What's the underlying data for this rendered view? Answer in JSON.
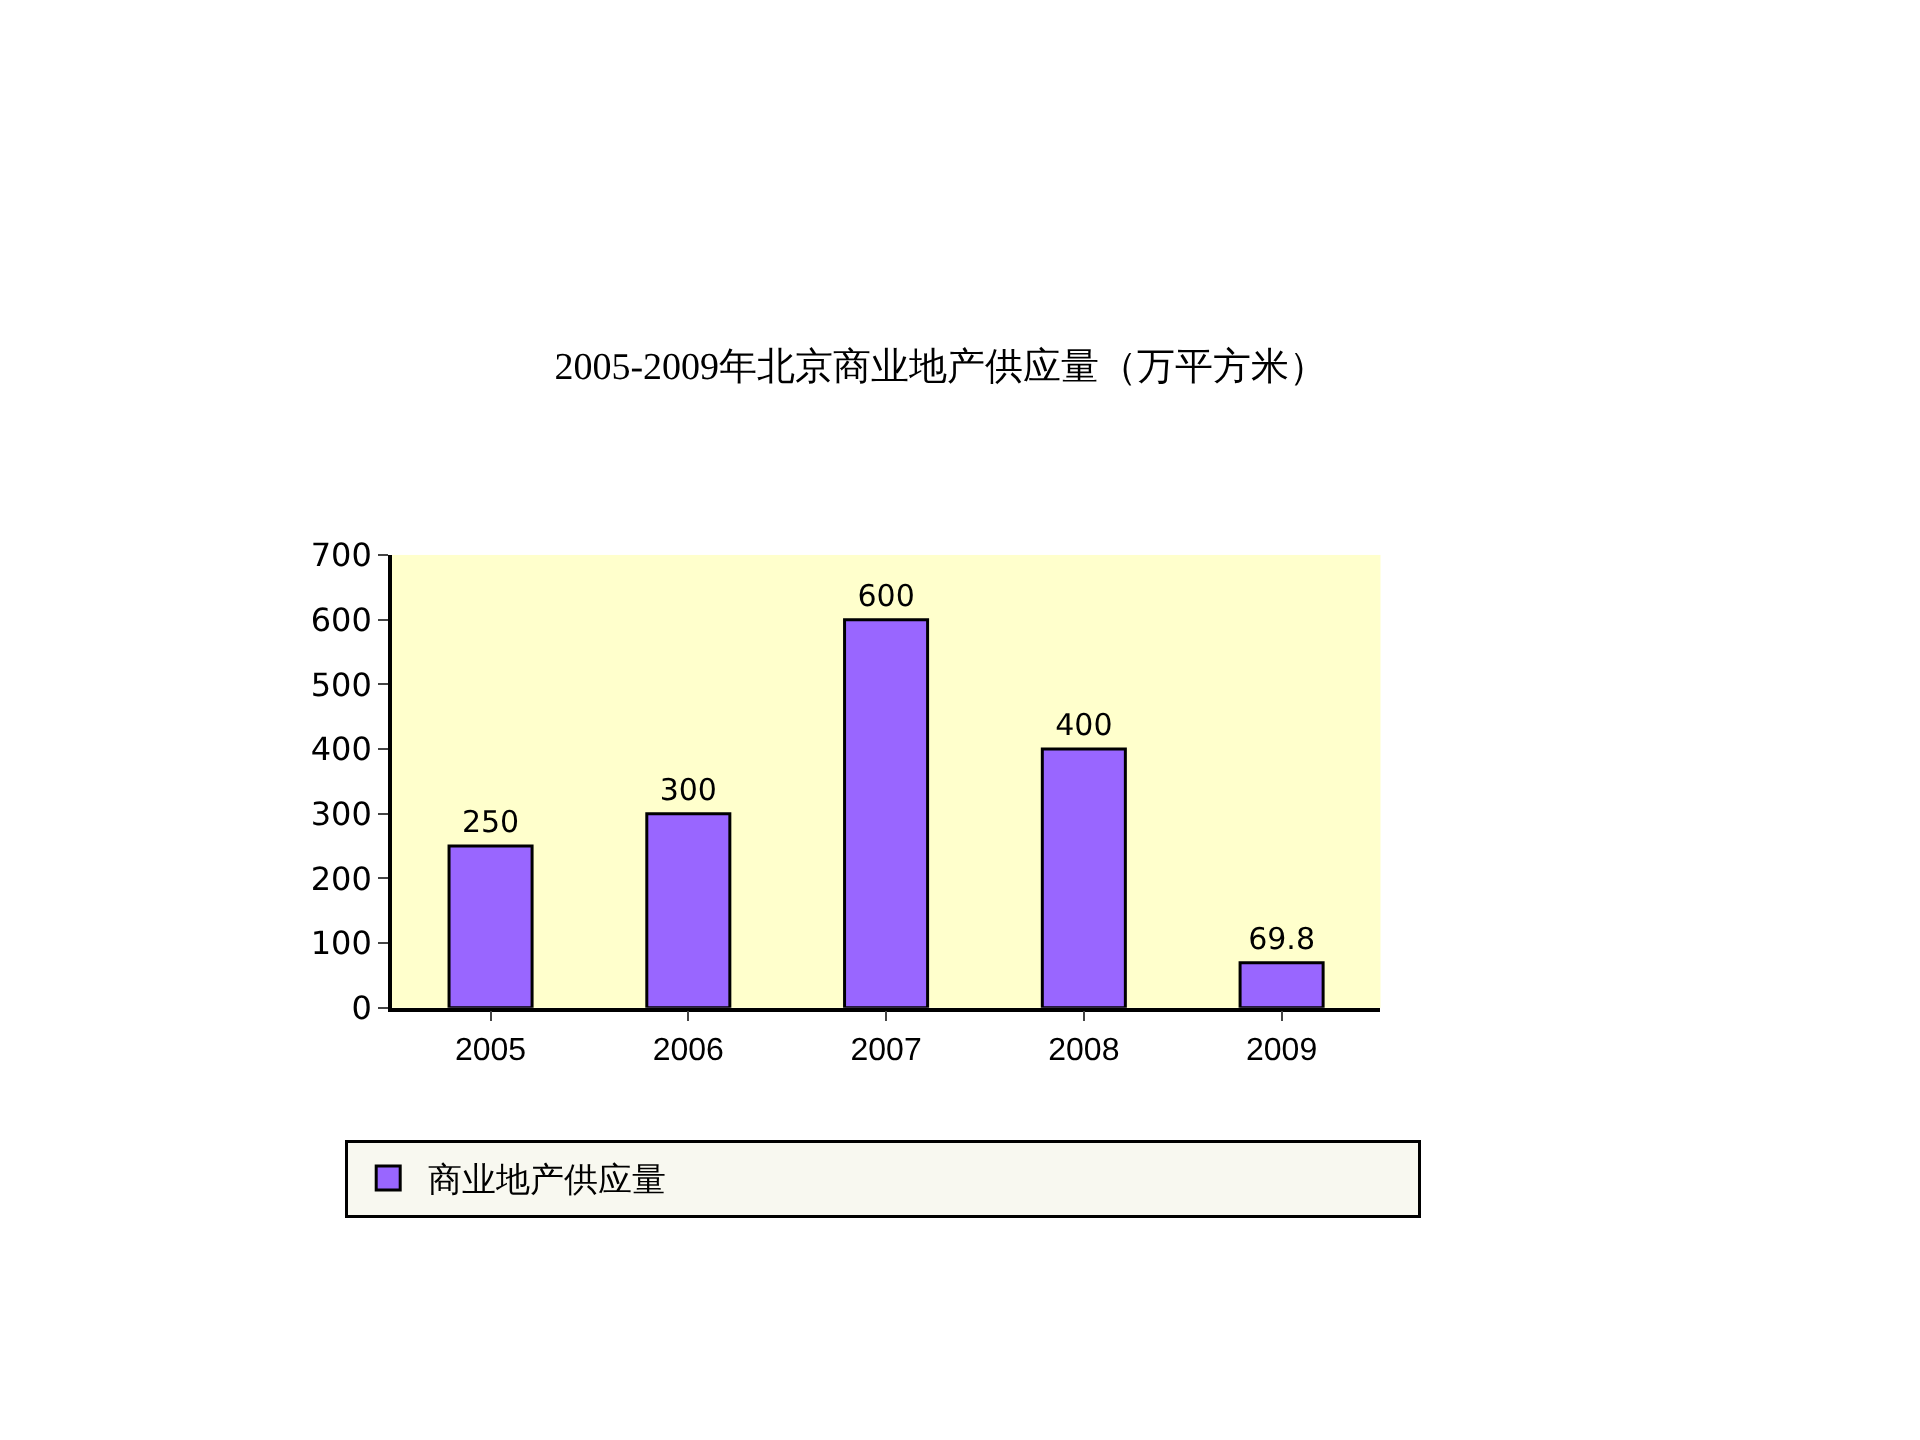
{
  "chart_data": {
    "type": "bar",
    "title": "2005-2009年北京商业地产供应量（万平方米）",
    "categories": [
      "2005",
      "2006",
      "2007",
      "2008",
      "2009"
    ],
    "series": [
      {
        "name": "商业地产供应量",
        "color": "#9966ff",
        "values": [
          250,
          300,
          600,
          400,
          69.8
        ]
      }
    ],
    "value_labels": [
      "250",
      "300",
      "600",
      "400",
      "69.8"
    ],
    "ylim": [
      0,
      700
    ],
    "yticks": [
      0,
      100,
      200,
      300,
      400,
      500,
      600,
      700
    ],
    "grid": false,
    "legend": "bottom"
  }
}
